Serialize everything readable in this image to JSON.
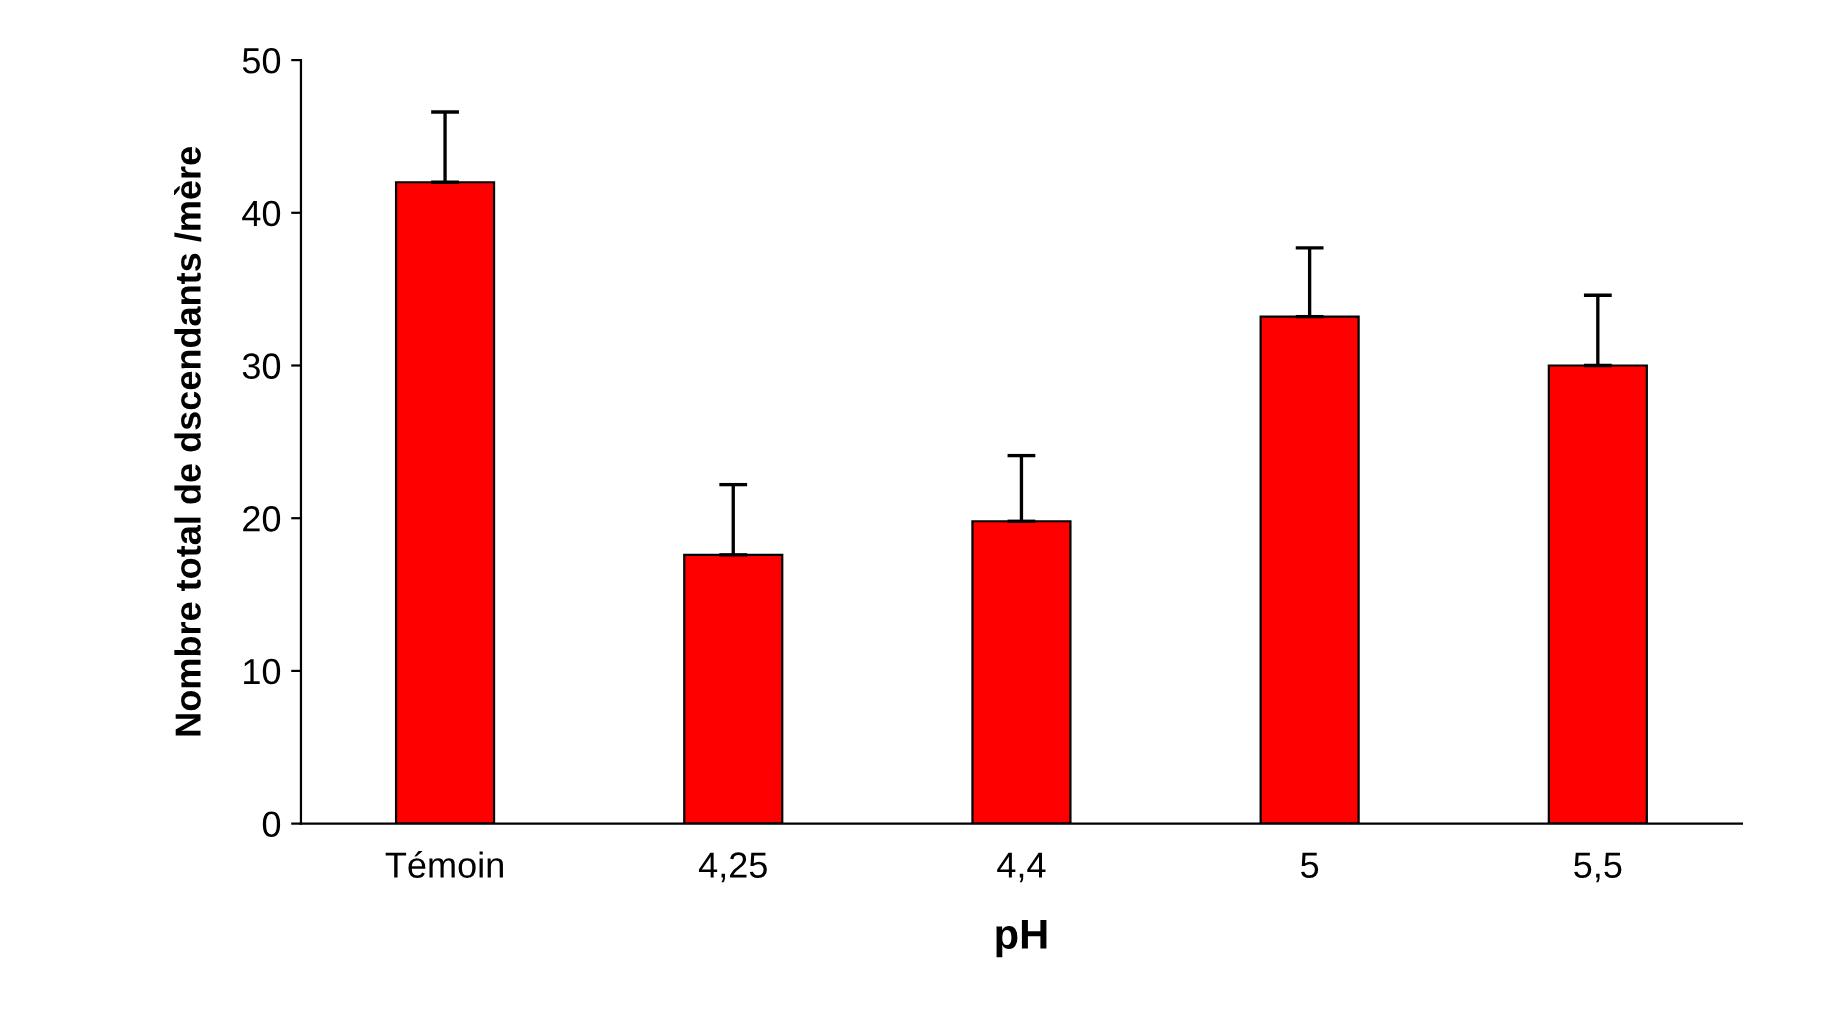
{
  "chart_data": {
    "type": "bar",
    "xlabel": "pH",
    "ylabel": "Nombre total de dscendants /mère",
    "categories": [
      "Témoin",
      "4,25",
      "4,4",
      "5",
      "5,5"
    ],
    "values": [
      42.0,
      17.6,
      19.8,
      33.2,
      30.0
    ],
    "errors": [
      [
        42.0,
        46.6
      ],
      [
        17.6,
        22.2
      ],
      [
        19.8,
        24.1
      ],
      [
        33.2,
        37.7
      ],
      [
        30.0,
        34.6
      ]
    ],
    "color": "#ff0000",
    "ylim": [
      0,
      50
    ],
    "yticks": [
      0,
      10,
      20,
      30,
      40,
      50
    ],
    "grid": false,
    "legend": false
  }
}
